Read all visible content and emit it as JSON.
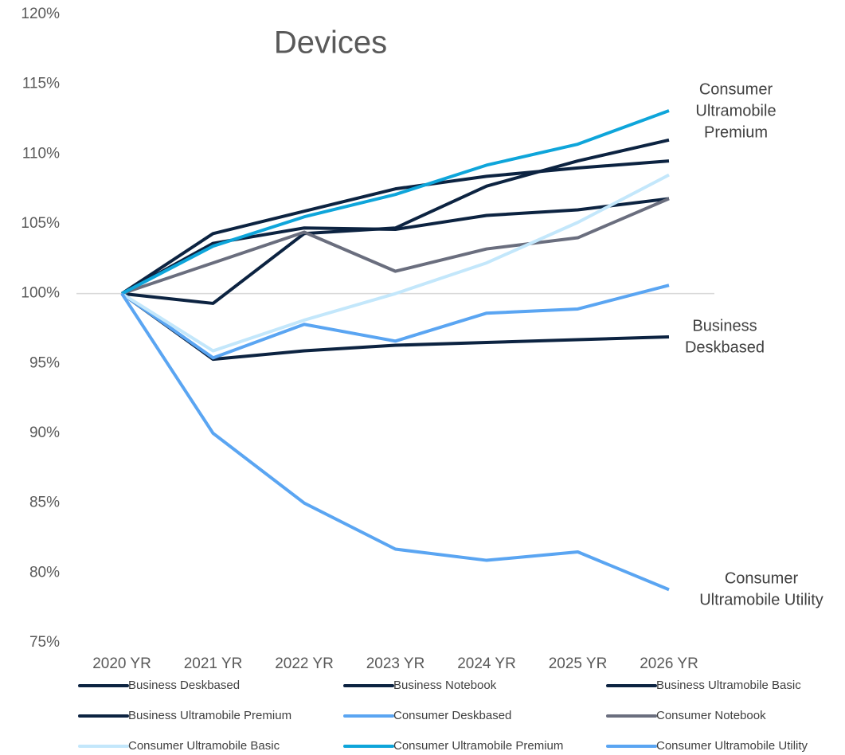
{
  "chart_data": {
    "type": "line",
    "title": "Devices",
    "categories": [
      "2020 YR",
      "2021 YR",
      "2022 YR",
      "2023 YR",
      "2024 YR",
      "2025 YR",
      "2026 YR"
    ],
    "ylim": [
      75,
      120
    ],
    "yticks": [
      {
        "value": 75,
        "label": "75%"
      },
      {
        "value": 80,
        "label": "80%"
      },
      {
        "value": 85,
        "label": "85%"
      },
      {
        "value": 90,
        "label": "90%"
      },
      {
        "value": 95,
        "label": "95%"
      },
      {
        "value": 100,
        "label": "100%"
      },
      {
        "value": 105,
        "label": "105%"
      },
      {
        "value": 110,
        "label": "110%"
      },
      {
        "value": 115,
        "label": "115%"
      },
      {
        "value": 120,
        "label": "120%"
      }
    ],
    "x_axis_crossing": 100,
    "grid": false,
    "legend": "bottom",
    "series": [
      {
        "name": "Business Deskbased",
        "color": "#0c2341",
        "values": [
          100,
          95.3,
          95.9,
          96.3,
          96.5,
          96.7,
          96.9
        ]
      },
      {
        "name": "Business Notebook",
        "color": "#0c2341",
        "values": [
          100,
          99.3,
          104.3,
          104.7,
          107.7,
          109.5,
          111
        ]
      },
      {
        "name": "Business Ultramobile Basic",
        "color": "#0c2341",
        "values": [
          100,
          103.6,
          104.7,
          104.6,
          105.6,
          106,
          106.8
        ]
      },
      {
        "name": "Business Ultramobile Premium",
        "color": "#0c2341",
        "values": [
          100,
          104.3,
          105.9,
          107.5,
          108.4,
          109,
          109.5
        ]
      },
      {
        "name": "Consumer Deskbased",
        "color": "#5aa5f2",
        "values": [
          100,
          95.4,
          97.8,
          96.6,
          98.6,
          98.9,
          100.6
        ]
      },
      {
        "name": "Consumer Notebook",
        "color": "#6a6e7e",
        "values": [
          100,
          102.2,
          104.4,
          101.6,
          103.2,
          104,
          106.8
        ]
      },
      {
        "name": "Consumer Ultramobile Basic",
        "color": "#c3e7fb",
        "values": [
          100,
          95.9,
          98.1,
          100,
          102.2,
          105.1,
          108.5
        ]
      },
      {
        "name": "Consumer Ultramobile Premium",
        "color": "#0ea5da",
        "values": [
          100,
          103.4,
          105.5,
          107.1,
          109.2,
          110.7,
          113.1
        ]
      },
      {
        "name": "Consumer Ultramobile Utility",
        "color": "#5aa5f2",
        "values": [
          100,
          90,
          85,
          81.7,
          80.9,
          81.5,
          78.8
        ]
      }
    ],
    "annotations": [
      {
        "lines": [
          "Consumer",
          "Ultramobile",
          "Premium"
        ]
      },
      {
        "lines": [
          "Business",
          "Deskbased"
        ]
      },
      {
        "lines": [
          "Consumer",
          "Ultramobile Utility"
        ]
      }
    ]
  }
}
